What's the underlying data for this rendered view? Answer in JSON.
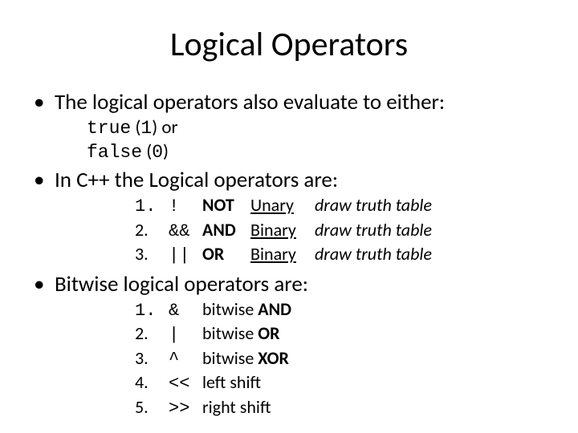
{
  "title": "Logical Operators",
  "bullet1": "The logical operators also evaluate to either:",
  "sub_true_word": "true",
  "sub_true_num": "1",
  "sub_or": "or",
  "sub_false_word": "false",
  "sub_false_num": "0",
  "bullet2": "In C++ the Logical operators are:",
  "logical_ops": {
    "r1": {
      "num": "1.",
      "sym": "!",
      "name": "NOT",
      "type": "Unary",
      "note": "draw truth table"
    },
    "r2": {
      "num": "2.",
      "sym": "&&",
      "name": "AND",
      "type": "Binary",
      "note": "draw truth table"
    },
    "r3": {
      "num": "3.",
      "sym": "||",
      "name": "OR",
      "type": "Binary",
      "note": "draw truth table"
    }
  },
  "bullet3": "Bitwise logical operators are:",
  "bitwise_ops": {
    "r1": {
      "num": "1.",
      "sym": "&",
      "label_pre": "bitwise ",
      "label_bold": "AND"
    },
    "r2": {
      "num": "2.",
      "sym": "|",
      "label_pre": "bitwise ",
      "label_bold": "OR"
    },
    "r3": {
      "num": "3.",
      "sym": "^",
      "label_pre": "bitwise ",
      "label_bold": "XOR"
    },
    "r4": {
      "num": "4.",
      "sym": "<<",
      "label_pre": "left shift",
      "label_bold": ""
    },
    "r5": {
      "num": "5.",
      "sym": ">>",
      "label_pre": "right shift",
      "label_bold": ""
    }
  },
  "paren_open": "(",
  "paren_close": ")"
}
